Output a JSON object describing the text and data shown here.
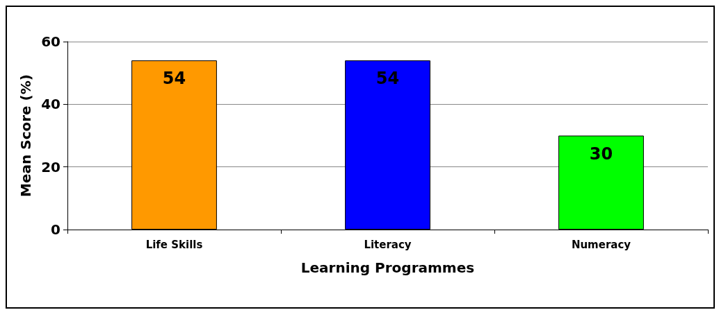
{
  "chart_data": {
    "type": "bar",
    "xlabel": "Learning Programmes",
    "ylabel": "Mean Score (%)",
    "categories": [
      "Life Skills",
      "Literacy",
      "Numeracy"
    ],
    "values": [
      54,
      54,
      30
    ],
    "colors": [
      "#ff9900",
      "#0000ff",
      "#00ff00"
    ],
    "ylim": [
      0,
      60
    ],
    "yticks": [
      0,
      20,
      40,
      60
    ],
    "grid": "y",
    "data_labels": true
  }
}
